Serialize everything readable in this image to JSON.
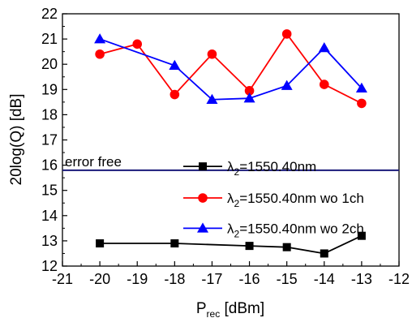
{
  "chart_data": {
    "type": "line",
    "xlabel_main": "P",
    "xlabel_sub": "rec",
    "xlabel_unit": " [dBm]",
    "ylabel": "20log(Q) [dB]",
    "xlim": [
      -21,
      -12
    ],
    "ylim": [
      12,
      22
    ],
    "xticks": [
      -21,
      -20,
      -19,
      -18,
      -17,
      -16,
      -15,
      -14,
      -13,
      -12
    ],
    "yticks": [
      12,
      13,
      14,
      15,
      16,
      17,
      18,
      19,
      20,
      21,
      22
    ],
    "grid": false,
    "legend_position": "center-right",
    "reference_line": {
      "y": 15.8,
      "label": "error free",
      "color": "#1a1a7a"
    },
    "series": [
      {
        "legend_symbol": "λ",
        "legend_sub": "2",
        "legend_rest": "=1550.40nm",
        "marker": "square",
        "color": "#000000",
        "x": [
          -20,
          -18,
          -16,
          -15,
          -14,
          -13
        ],
        "y": [
          12.9,
          12.9,
          12.8,
          12.75,
          12.5,
          13.2
        ]
      },
      {
        "legend_symbol": "λ",
        "legend_sub": "2",
        "legend_rest": "=1550.40nm wo 1ch",
        "marker": "circle",
        "color": "#ff0000",
        "x": [
          -20,
          -19,
          -18,
          -17,
          -16,
          -15,
          -14,
          -13
        ],
        "y": [
          20.4,
          20.8,
          18.8,
          20.4,
          18.95,
          21.2,
          19.2,
          18.45
        ]
      },
      {
        "legend_symbol": "λ",
        "legend_sub": "2",
        "legend_rest": "=1550.40nm wo 2ch",
        "marker": "triangle",
        "color": "#0000ff",
        "x": [
          -20,
          -18,
          -17,
          -16,
          -15,
          -14,
          -13
        ],
        "y": [
          21.0,
          19.95,
          18.6,
          18.65,
          19.15,
          20.65,
          19.05
        ]
      }
    ]
  }
}
